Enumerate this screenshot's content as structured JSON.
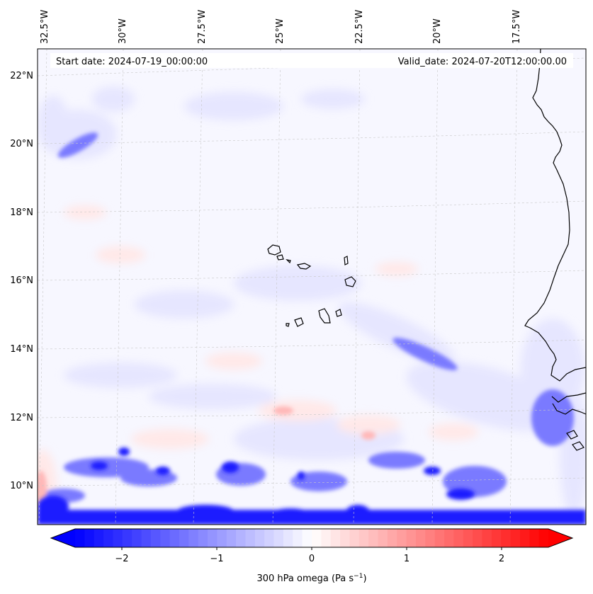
{
  "map": {
    "start_date_label": "Start date: 2024-07-19_00:00:00",
    "valid_date_label": "Valid_date: 2024-07-20T12:00:00.00",
    "lon_ticks": [
      "32.5°W",
      "30°W",
      "27.5°W",
      "25°W",
      "22.5°W",
      "20°W",
      "17.5°W"
    ],
    "lat_ticks": [
      "22°N",
      "20°N",
      "18°N",
      "16°N",
      "14°N",
      "12°N",
      "10°N"
    ],
    "field_colors": {
      "strong_neg": "#1a1aff",
      "mid_neg": "#7a7aff",
      "weak_neg": "#e6e6ff",
      "background": "#f7f7ff",
      "weak_pos": "#ffe8e8",
      "mid_pos": "#ffb8b8",
      "coast": "#000000"
    }
  },
  "colorbar": {
    "ticks": [
      "−2",
      "−1",
      "0",
      "1",
      "2"
    ],
    "label": "300 hPa omega (Pa s",
    "label_exp": "−1",
    "label_close": ")",
    "min_color": "#0000ff",
    "mid_color": "#ffffff",
    "max_color": "#ff0000"
  }
}
